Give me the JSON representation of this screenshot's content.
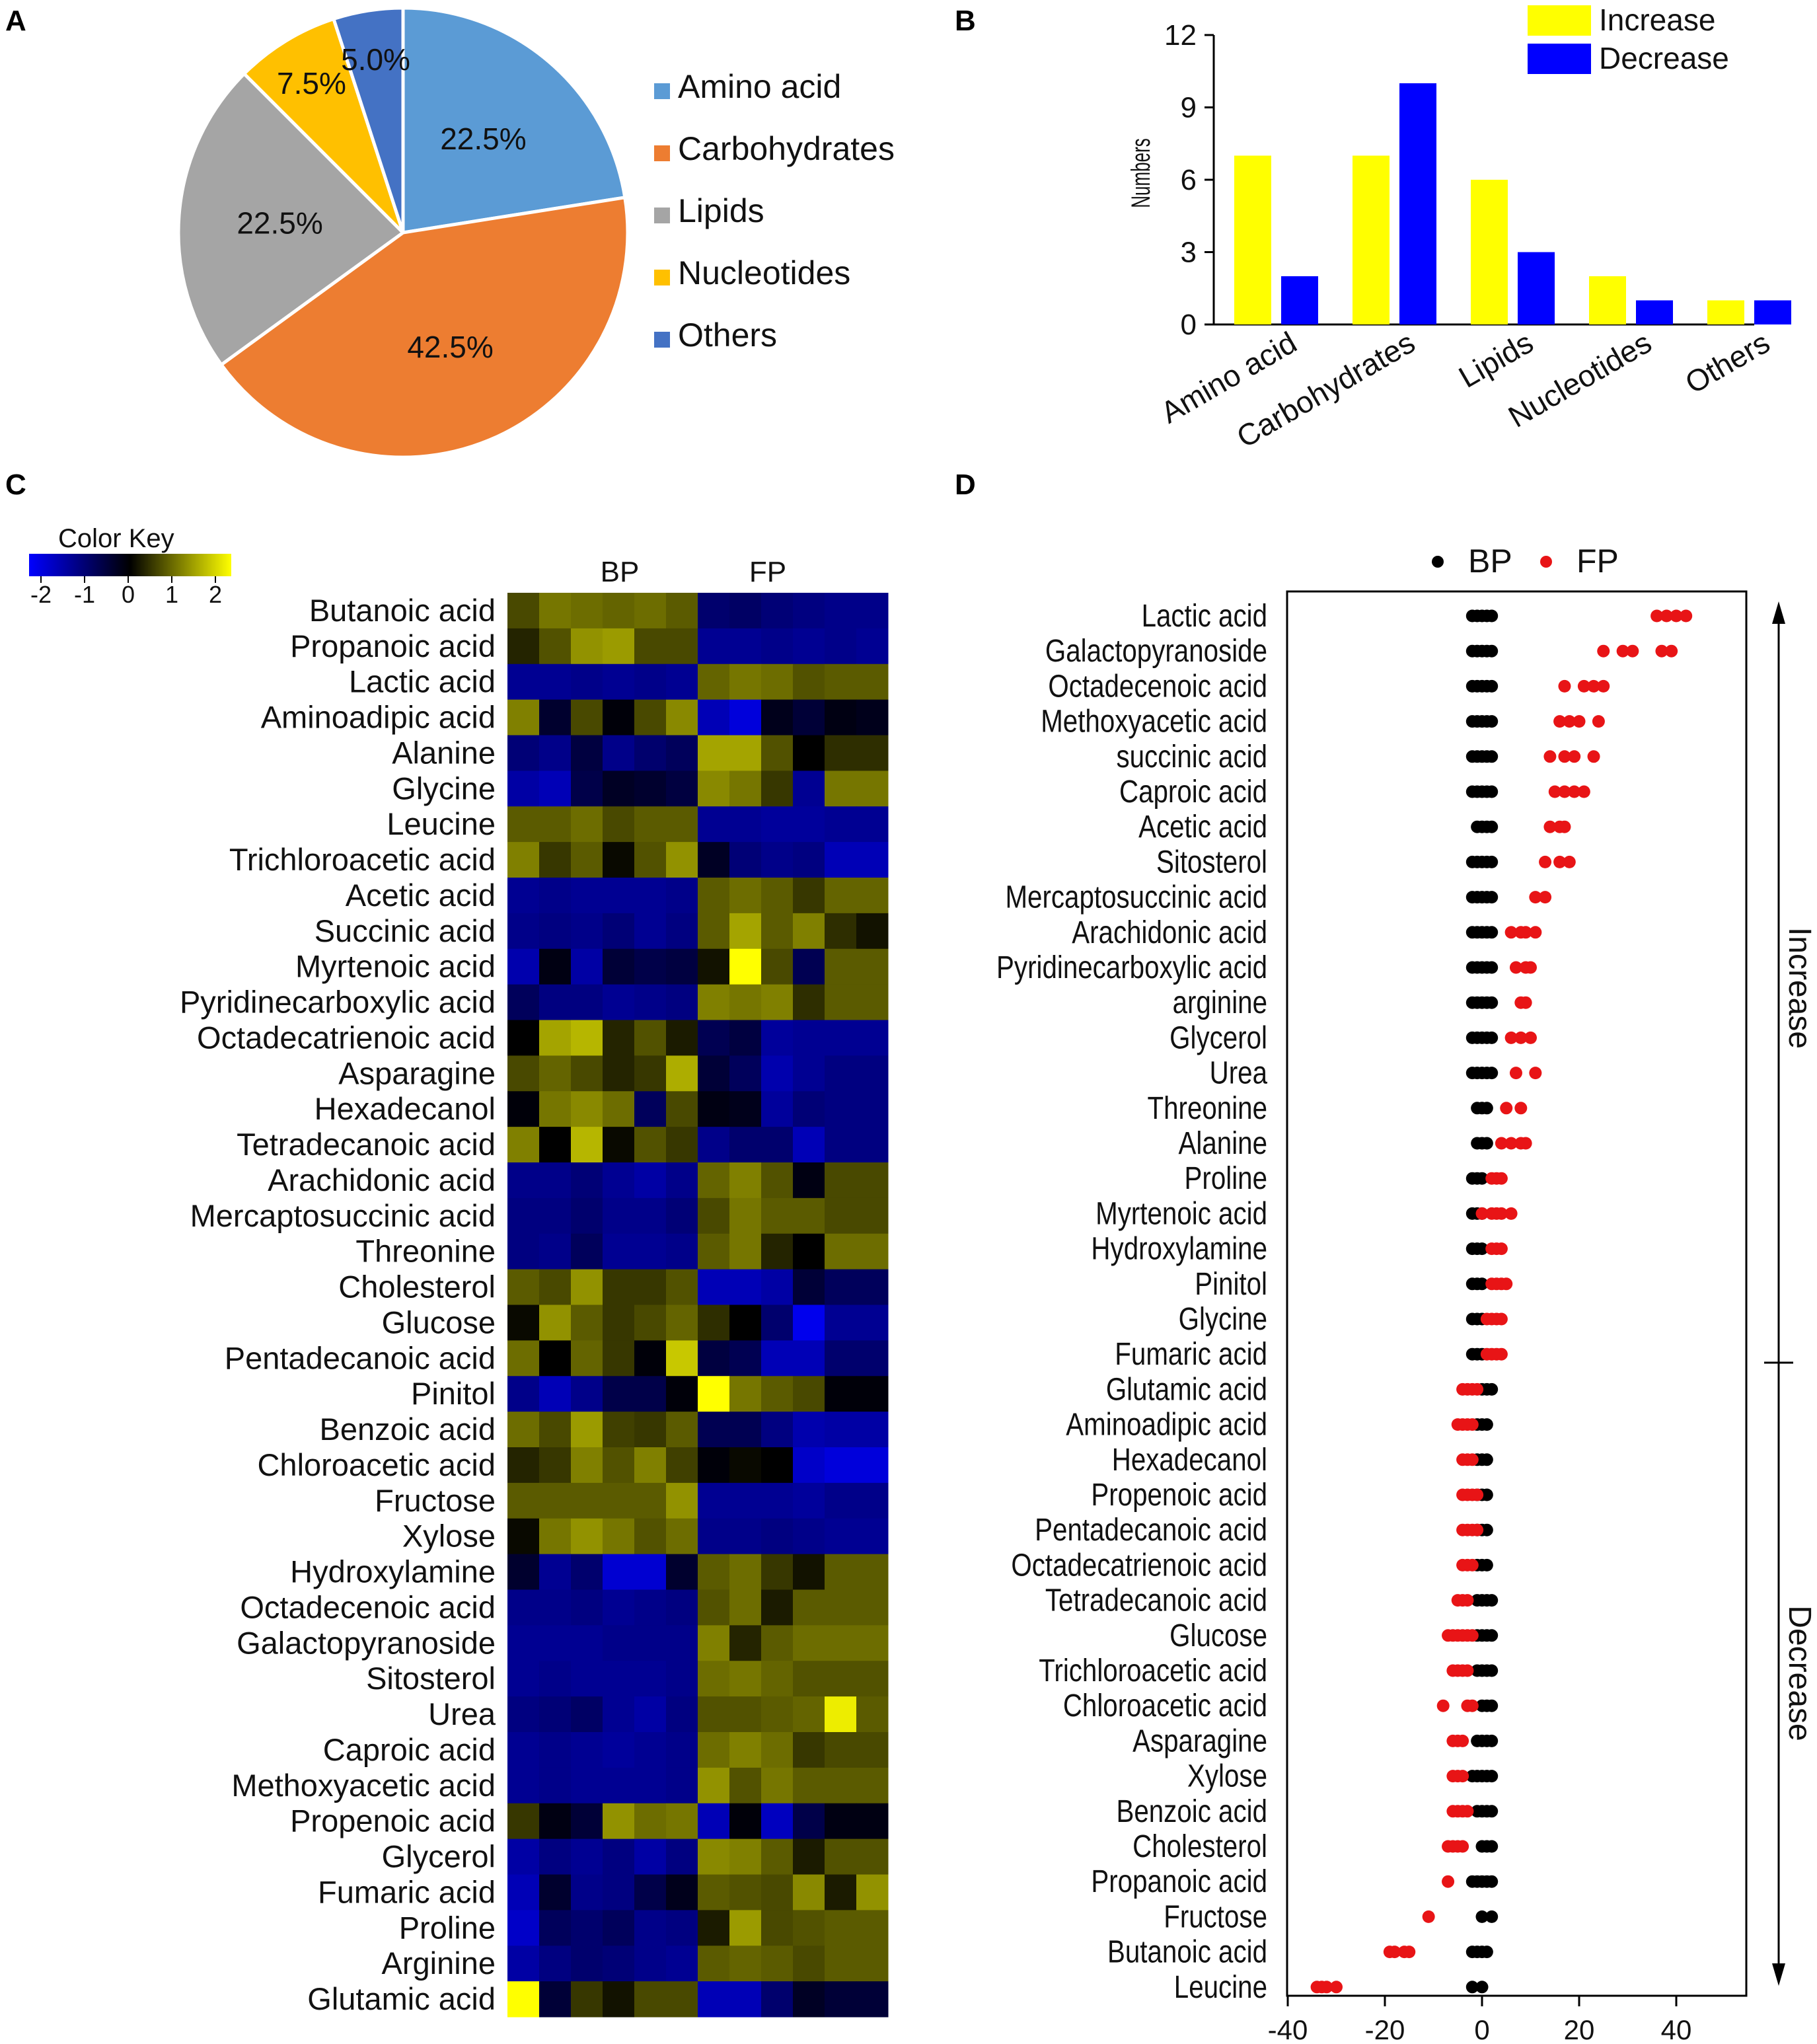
{
  "panels": [
    "A",
    "B",
    "C",
    "D"
  ],
  "chart_data": [
    {
      "panel": "A",
      "type": "pie",
      "labels": [
        "Amino acid",
        "Carbohydrates",
        "Lipids",
        "Nucleotides",
        "Others"
      ],
      "values": [
        22.5,
        42.5,
        22.5,
        7.5,
        5.0
      ],
      "value_labels": [
        "22.5%",
        "42.5%",
        "22.5%",
        "7.5%",
        "5.0%"
      ],
      "colors": [
        "#5B9BD5",
        "#ED7D31",
        "#A5A5A5",
        "#FFC000",
        "#4472C4"
      ],
      "legend_placement": "right"
    },
    {
      "panel": "B",
      "type": "bar",
      "categories": [
        "Amino acid",
        "Carbohydrates",
        "Lipids",
        "Nucleotides",
        "Others"
      ],
      "series": [
        {
          "name": "Increase",
          "values": [
            7,
            7,
            6,
            2,
            1
          ],
          "color": "#FFFF00"
        },
        {
          "name": "Decrease",
          "values": [
            2,
            10,
            3,
            1,
            1
          ],
          "color": "#0000FF"
        }
      ],
      "ylabel": "Numbers",
      "ylim": [
        0,
        12
      ],
      "yticks": [
        "0",
        "3",
        "6",
        "9",
        "12"
      ],
      "legend_placement": "top-right"
    },
    {
      "panel": "C",
      "type": "heatmap",
      "title": "Color Key",
      "key_ticks": [
        "-2",
        "-1",
        "0",
        "1",
        "2"
      ],
      "groups": [
        "BP",
        "FP"
      ],
      "rows": [
        "Butanoic acid",
        "Propanoic acid",
        "Lactic acid",
        "Aminoadipic acid",
        "Alanine",
        "Glycine",
        "Leucine",
        "Trichloroacetic acid",
        "Acetic acid",
        "Succinic acid",
        "Myrtenoic acid",
        "Pyridinecarboxylic acid",
        "Octadecatrienoic acid",
        "Asparagine",
        "Hexadecanol",
        "Tetradecanoic acid",
        "Arachidonic acid",
        "Mercaptosuccinic acid",
        "Threonine",
        "Cholesterol",
        "Glucose",
        "Pentadecanoic acid",
        "Pinitol",
        "Benzoic acid",
        "Chloroacetic acid",
        "Fructose",
        "Xylose",
        "Hydroxylamine",
        "Octadecenoic acid",
        "Galactopyranoside",
        "Sitosterol",
        "Urea",
        "Caproic acid",
        "Methoxyacetic acid",
        "Propenoic acid",
        "Glycerol",
        "Fumaric acid",
        "Proline",
        "Arginine",
        "Glutamic acid"
      ],
      "values": [
        [
          0.8,
          1.3,
          1.2,
          1.1,
          1.2,
          1.0,
          -1.2,
          -1.1,
          -1.3,
          -1.4,
          -1.5,
          -1.5
        ],
        [
          0.4,
          0.9,
          1.6,
          1.7,
          0.8,
          0.8,
          -1.6,
          -1.6,
          -1.5,
          -1.6,
          -1.5,
          -1.6
        ],
        [
          -1.6,
          -1.6,
          -1.5,
          -1.6,
          -1.5,
          -1.6,
          1.1,
          1.3,
          1.2,
          0.9,
          1.0,
          1.0
        ],
        [
          1.4,
          -0.5,
          0.8,
          -0.1,
          0.8,
          1.5,
          -2.0,
          -2.4,
          -0.3,
          -0.6,
          -0.2,
          -0.3
        ],
        [
          -1.3,
          -1.5,
          -0.7,
          -1.5,
          -1.2,
          -1.0,
          1.8,
          1.8,
          0.9,
          0.0,
          0.5,
          0.5
        ],
        [
          -1.8,
          -2.0,
          -0.8,
          -0.4,
          -0.5,
          -0.7,
          1.5,
          1.3,
          0.6,
          -1.6,
          1.3,
          1.3
        ],
        [
          1.0,
          1.0,
          1.2,
          0.8,
          1.0,
          1.0,
          -1.6,
          -1.6,
          -1.7,
          -1.7,
          -1.6,
          -1.6
        ],
        [
          1.4,
          0.6,
          1.0,
          0.1,
          0.9,
          1.6,
          -0.4,
          -1.3,
          -1.5,
          -1.4,
          -2.0,
          -2.0
        ],
        [
          -1.6,
          -1.5,
          -1.6,
          -1.6,
          -1.6,
          -1.5,
          1.0,
          1.2,
          1.0,
          0.6,
          1.1,
          1.1
        ],
        [
          -1.5,
          -1.4,
          -1.5,
          -1.3,
          -1.6,
          -1.4,
          1.0,
          1.8,
          1.0,
          1.4,
          0.5,
          0.2
        ],
        [
          -1.9,
          -0.2,
          -1.8,
          -0.6,
          -0.8,
          -0.7,
          0.2,
          2.8,
          0.8,
          -0.9,
          1.0,
          1.0
        ],
        [
          -1.0,
          -1.4,
          -1.4,
          -1.6,
          -1.5,
          -1.4,
          1.4,
          1.3,
          1.4,
          0.5,
          1.0,
          1.0
        ],
        [
          0.0,
          1.8,
          2.0,
          0.4,
          0.9,
          0.3,
          -0.9,
          -0.7,
          -1.7,
          -1.6,
          -1.6,
          -1.6
        ],
        [
          0.8,
          1.1,
          0.8,
          0.4,
          0.6,
          1.9,
          -0.6,
          -1.0,
          -1.9,
          -1.6,
          -1.4,
          -1.4
        ],
        [
          -0.1,
          1.3,
          1.5,
          1.2,
          -1.0,
          0.8,
          -0.2,
          -0.3,
          -1.7,
          -1.3,
          -1.4,
          -1.4
        ],
        [
          1.4,
          0.0,
          2.0,
          0.1,
          0.9,
          0.6,
          -1.5,
          -1.2,
          -1.2,
          -2.0,
          -1.4,
          -1.4
        ],
        [
          -1.5,
          -1.5,
          -1.3,
          -1.6,
          -1.8,
          -1.5,
          1.1,
          1.4,
          0.9,
          -0.2,
          0.8,
          0.8
        ],
        [
          -1.4,
          -1.4,
          -1.2,
          -1.5,
          -1.5,
          -1.3,
          0.8,
          1.3,
          1.0,
          1.0,
          0.8,
          0.8
        ],
        [
          -1.4,
          -1.5,
          -1.0,
          -1.6,
          -1.6,
          -1.5,
          1.0,
          1.3,
          0.4,
          0.0,
          1.2,
          1.2
        ],
        [
          1.0,
          0.8,
          1.6,
          0.6,
          0.6,
          0.9,
          -2.0,
          -2.0,
          -1.8,
          -0.6,
          -1.0,
          -1.0
        ],
        [
          0.1,
          1.6,
          1.0,
          0.6,
          0.8,
          1.1,
          0.5,
          0.0,
          -1.2,
          -2.6,
          -1.6,
          -1.6
        ],
        [
          1.2,
          0.0,
          1.1,
          0.6,
          -0.1,
          2.2,
          -0.7,
          -0.9,
          -2.0,
          -2.0,
          -1.2,
          -1.2
        ],
        [
          -1.5,
          -2.0,
          -1.5,
          -0.8,
          -0.8,
          -0.1,
          2.8,
          1.3,
          1.0,
          0.8,
          -0.1,
          -0.1
        ],
        [
          1.2,
          0.8,
          1.7,
          0.7,
          0.6,
          1.0,
          -0.9,
          -0.9,
          -1.4,
          -1.9,
          -1.8,
          -1.8
        ],
        [
          0.4,
          0.6,
          1.4,
          0.9,
          1.4,
          0.7,
          -0.1,
          0.1,
          0.0,
          -2.2,
          -2.4,
          -2.4
        ],
        [
          1.0,
          1.0,
          1.0,
          1.0,
          1.0,
          1.6,
          -1.6,
          -1.6,
          -1.6,
          -1.7,
          -1.5,
          -1.5
        ],
        [
          0.1,
          1.3,
          1.6,
          1.3,
          0.9,
          1.2,
          -1.5,
          -1.5,
          -1.4,
          -1.5,
          -1.6,
          -1.6
        ],
        [
          -0.5,
          -1.6,
          -1.2,
          -2.3,
          -2.3,
          -0.5,
          1.0,
          1.2,
          0.6,
          0.2,
          1.0,
          1.0
        ],
        [
          -1.5,
          -1.5,
          -1.4,
          -1.6,
          -1.5,
          -1.4,
          0.9,
          1.2,
          0.3,
          1.0,
          1.0,
          1.0
        ],
        [
          -1.6,
          -1.6,
          -1.6,
          -1.5,
          -1.5,
          -1.5,
          1.4,
          0.4,
          1.0,
          1.2,
          1.2,
          1.2
        ],
        [
          -1.6,
          -1.5,
          -1.6,
          -1.6,
          -1.6,
          -1.5,
          1.2,
          1.3,
          1.1,
          0.9,
          0.9,
          0.9
        ],
        [
          -1.4,
          -1.3,
          -1.1,
          -1.6,
          -1.8,
          -1.4,
          0.9,
          0.9,
          1.0,
          1.1,
          2.6,
          1.0
        ],
        [
          -1.6,
          -1.5,
          -1.6,
          -1.7,
          -1.6,
          -1.5,
          1.2,
          1.4,
          1.2,
          0.6,
          0.8,
          0.8
        ],
        [
          -1.6,
          -1.5,
          -1.6,
          -1.6,
          -1.6,
          -1.5,
          1.6,
          0.9,
          1.3,
          1.0,
          1.0,
          1.0
        ],
        [
          0.6,
          -0.2,
          -0.6,
          1.6,
          1.2,
          1.3,
          -2.0,
          -0.1,
          -2.1,
          -0.8,
          -0.2,
          -0.2
        ],
        [
          -1.8,
          -1.4,
          -1.6,
          -1.4,
          -1.8,
          -1.4,
          1.5,
          1.4,
          1.0,
          0.3,
          0.9,
          0.9
        ],
        [
          -2.0,
          -0.5,
          -1.5,
          -1.4,
          -0.8,
          -0.3,
          1.0,
          0.9,
          0.8,
          1.5,
          0.3,
          1.6
        ],
        [
          -2.2,
          -1.0,
          -1.2,
          -1.0,
          -1.5,
          -1.4,
          0.3,
          1.7,
          0.8,
          0.9,
          1.0,
          1.0
        ],
        [
          -1.8,
          -1.4,
          -1.2,
          -1.3,
          -1.5,
          -1.6,
          1.0,
          1.1,
          1.0,
          0.8,
          1.0,
          1.0
        ],
        [
          2.8,
          -0.6,
          0.6,
          0.2,
          0.8,
          0.8,
          -2.0,
          -2.0,
          -1.2,
          -0.4,
          -0.6,
          -0.6
        ]
      ]
    },
    {
      "panel": "D",
      "type": "scatter",
      "series": [
        {
          "name": "BP",
          "color": "#000000"
        },
        {
          "name": "FP",
          "color": "#E81416"
        }
      ],
      "categories": [
        "Lactic acid",
        "Galactopyranoside",
        "Octadecenoic acid",
        "Methoxyacetic acid",
        "succinic acid",
        "Caproic acid",
        "Acetic acid",
        "Sitosterol",
        "Mercaptosuccinic acid",
        "Arachidonic acid",
        "Pyridinecarboxylic acid",
        "arginine",
        "Glycerol",
        "Urea",
        "Threonine",
        "Alanine",
        "Proline",
        "Myrtenoic acid",
        "Hydroxylamine",
        "Pinitol",
        "Glycine",
        "Fumaric acid",
        "Glutamic acid",
        "Aminoadipic acid",
        "Hexadecanol",
        "Propenoic acid",
        "Pentadecanoic acid",
        "Octadecatrienoic acid",
        "Tetradecanoic acid",
        "Glucose",
        "Trichloroacetic acid",
        "Chloroacetic acid",
        "Asparagine",
        "Xylose",
        "Benzoic acid",
        "Cholesterol",
        "Propanoic acid",
        "Fructose",
        "Butanoic acid",
        "Leucine"
      ],
      "bp_x": [
        [
          -2,
          -1,
          0,
          1,
          2
        ],
        [
          -2,
          -1,
          0,
          1,
          2
        ],
        [
          -2,
          -1,
          0,
          1,
          2
        ],
        [
          -2,
          -1,
          0,
          1,
          2
        ],
        [
          -2,
          -1,
          0,
          1,
          2
        ],
        [
          -2,
          -1,
          0,
          1,
          2
        ],
        [
          -1,
          0,
          1,
          2
        ],
        [
          -2,
          -1,
          0,
          1,
          2
        ],
        [
          -2,
          -1,
          0,
          1,
          2
        ],
        [
          -2,
          -1,
          0,
          1,
          2
        ],
        [
          -2,
          -1,
          0,
          1,
          2
        ],
        [
          -2,
          -1,
          0,
          1,
          2
        ],
        [
          -2,
          -1,
          0,
          1,
          2
        ],
        [
          -2,
          -1,
          0,
          1,
          2
        ],
        [
          -1,
          0,
          1
        ],
        [
          -1,
          0,
          1
        ],
        [
          -2,
          -1,
          0
        ],
        [
          -2,
          -1,
          0
        ],
        [
          -2,
          -1,
          0
        ],
        [
          -2,
          -1,
          0
        ],
        [
          -2,
          -1,
          0
        ],
        [
          -2,
          -1,
          0
        ],
        [
          0,
          1,
          2
        ],
        [
          -1,
          0,
          1
        ],
        [
          -1,
          0,
          1
        ],
        [
          -1,
          0,
          1
        ],
        [
          -1,
          0,
          1
        ],
        [
          -1,
          0,
          1
        ],
        [
          -1,
          0,
          1,
          2
        ],
        [
          -1,
          0,
          1,
          2
        ],
        [
          -1,
          0,
          1,
          2
        ],
        [
          0,
          1,
          2
        ],
        [
          -1,
          0,
          1,
          2
        ],
        [
          -2,
          -1,
          0,
          1,
          2
        ],
        [
          -1,
          0,
          1,
          2
        ],
        [
          0,
          1,
          2
        ],
        [
          -2,
          -1,
          0,
          1,
          2
        ],
        [
          0,
          2
        ],
        [
          -2,
          -1,
          0,
          1
        ],
        [
          -2,
          0
        ]
      ],
      "fp_x": [
        [
          36,
          38,
          40,
          42
        ],
        [
          25,
          29,
          31,
          37,
          39
        ],
        [
          17,
          21,
          23,
          25
        ],
        [
          16,
          18,
          20,
          24
        ],
        [
          14,
          17,
          19,
          23
        ],
        [
          15,
          17,
          19,
          21
        ],
        [
          14,
          16,
          17
        ],
        [
          13,
          16,
          18
        ],
        [
          11,
          13
        ],
        [
          6,
          8,
          9,
          11
        ],
        [
          7,
          9,
          10
        ],
        [
          8,
          9
        ],
        [
          6,
          8,
          10
        ],
        [
          7,
          11
        ],
        [
          5,
          8
        ],
        [
          4,
          6,
          8,
          9
        ],
        [
          2,
          3,
          4
        ],
        [
          0,
          2,
          3,
          4,
          6
        ],
        [
          2,
          3,
          4
        ],
        [
          2,
          3,
          4,
          5
        ],
        [
          1,
          2,
          3,
          4
        ],
        [
          1,
          2,
          3,
          4
        ],
        [
          -4,
          -3,
          -2,
          -1
        ],
        [
          -5,
          -4,
          -3,
          -2
        ],
        [
          -4,
          -3,
          -2
        ],
        [
          -4,
          -3,
          -2,
          -1
        ],
        [
          -4,
          -3,
          -2,
          -1
        ],
        [
          -4,
          -3,
          -2
        ],
        [
          -5,
          -4,
          -3
        ],
        [
          -7,
          -6,
          -5,
          -4,
          -3,
          -2
        ],
        [
          -6,
          -5,
          -4,
          -3
        ],
        [
          -8,
          -3,
          -2
        ],
        [
          -6,
          -5,
          -4
        ],
        [
          -6,
          -5,
          -4
        ],
        [
          -6,
          -5,
          -4,
          -3
        ],
        [
          -7,
          -6,
          -5,
          -4
        ],
        [
          -7
        ],
        [
          -11
        ],
        [
          -19,
          -18,
          -16,
          -15
        ],
        [
          -34,
          -33,
          -32,
          -30
        ]
      ],
      "xlim": [
        -40,
        55
      ],
      "xticks": [
        "-40",
        "-20",
        "0",
        "20",
        "40"
      ],
      "legend_placement": "top",
      "annotations": [
        "Increase",
        "Decrease"
      ]
    }
  ]
}
